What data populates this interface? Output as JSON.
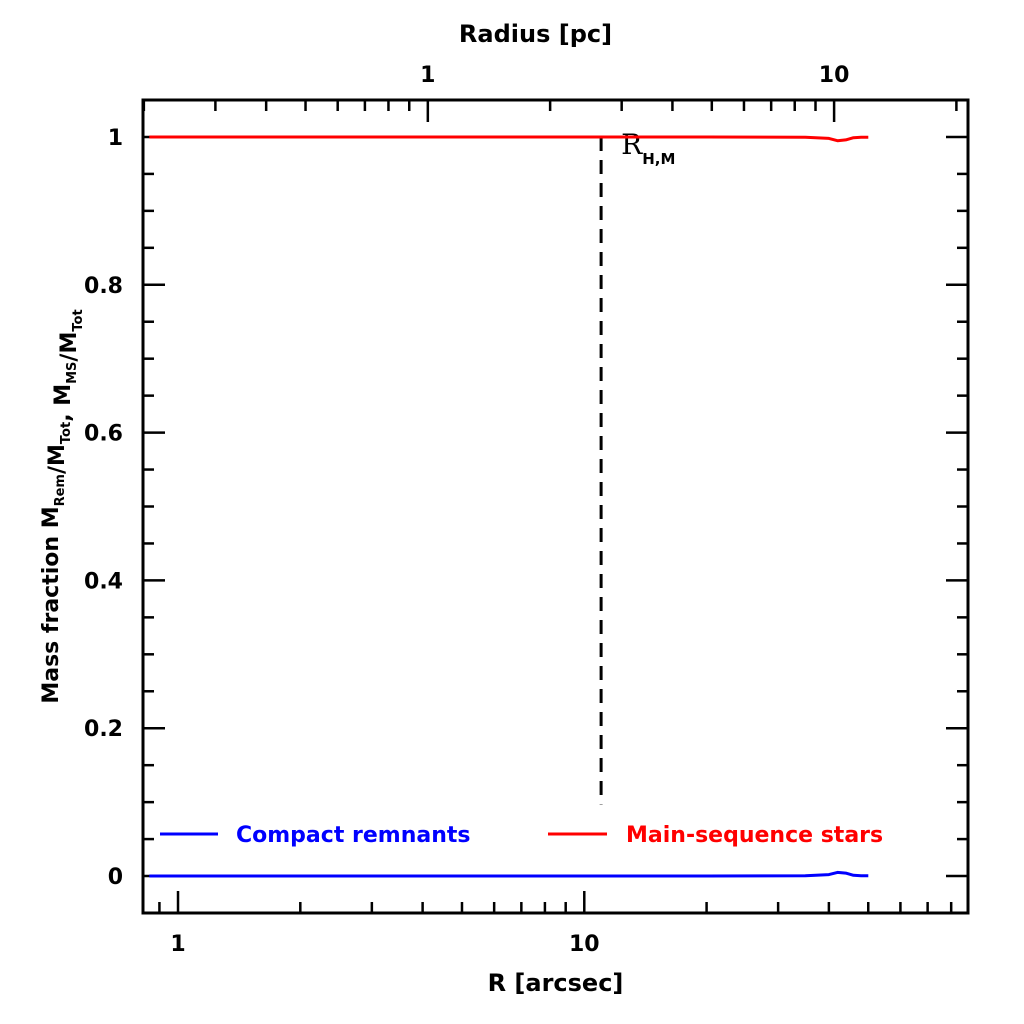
{
  "chart_data": {
    "type": "line",
    "xlabel": "R [arcsec]",
    "x2label": "Radius [pc]",
    "ylabel_parts": [
      {
        "t": "Mass fraction  M",
        "sub": false
      },
      {
        "t": "Rem",
        "sub": true
      },
      {
        "t": "/M",
        "sub": false
      },
      {
        "t": "Tot",
        "sub": true
      },
      {
        "t": ",  M",
        "sub": false
      },
      {
        "t": "MS",
        "sub": true
      },
      {
        "t": "/M",
        "sub": false
      },
      {
        "t": "Tot",
        "sub": true
      }
    ],
    "x_scale": "log",
    "xlim": [
      0.82,
      88
    ],
    "ylim": [
      -0.05,
      1.05
    ],
    "x_ticks": [
      1,
      10
    ],
    "x_tick_labels": [
      "1",
      "10"
    ],
    "x2_ticks_arcsec": [
      4.12,
      41.2
    ],
    "x2_tick_labels": [
      "1",
      "10"
    ],
    "y_ticks": [
      0,
      0.2,
      0.4,
      0.6,
      0.8,
      1
    ],
    "y_tick_labels": [
      "0",
      "0.2",
      "0.4",
      "0.6",
      "0.8",
      "1"
    ],
    "series": [
      {
        "name": "Compact remnants",
        "color": "#0000ff",
        "x": [
          0.85,
          5,
          10,
          20,
          35,
          40,
          42,
          44,
          46,
          48,
          50
        ],
        "y": [
          0,
          0,
          0,
          0,
          0.0005,
          0.002,
          0.005,
          0.004,
          0.001,
          0.0005,
          0.0005
        ]
      },
      {
        "name": "Main-sequence stars",
        "color": "#ff0000",
        "x": [
          0.85,
          5,
          10,
          20,
          35,
          40,
          42,
          44,
          46,
          48,
          50
        ],
        "y": [
          1,
          1,
          1,
          1,
          0.9995,
          0.998,
          0.995,
          0.996,
          0.999,
          0.9995,
          0.9995
        ]
      }
    ],
    "vline": {
      "x": 11,
      "style": "dashed",
      "label_main": "R",
      "label_sub": "H,M"
    },
    "legend": {
      "position": "bottom",
      "orientation": "horizontal"
    }
  }
}
